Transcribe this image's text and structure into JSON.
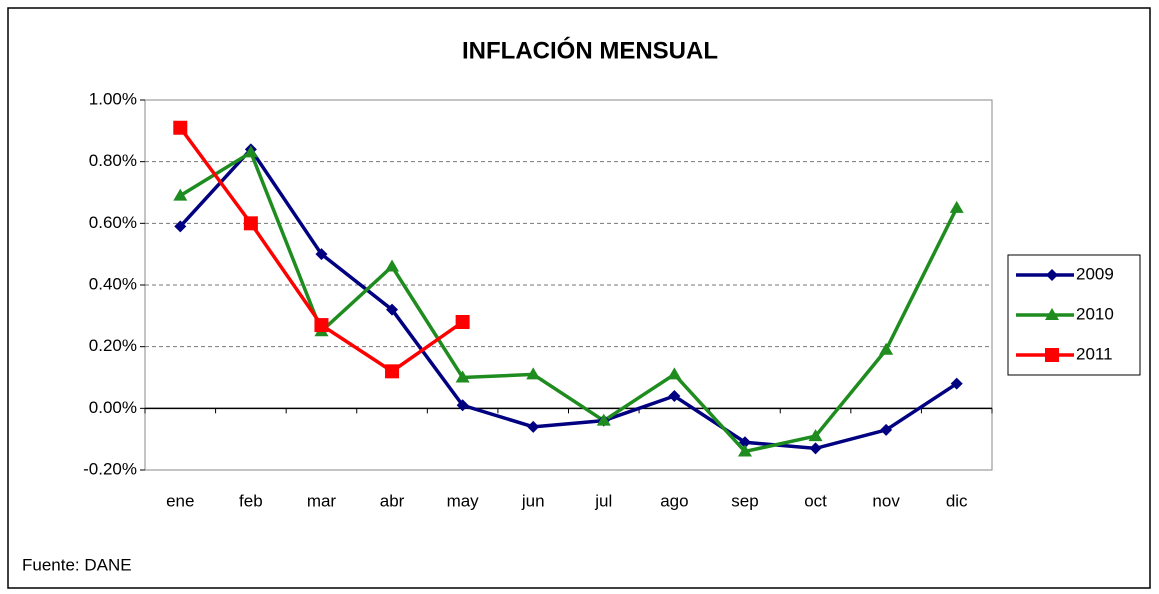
{
  "chart_data": {
    "type": "line",
    "title": "INFLACIÓN MENSUAL",
    "categories": [
      "ene",
      "feb",
      "mar",
      "abr",
      "may",
      "jun",
      "jul",
      "ago",
      "sep",
      "oct",
      "nov",
      "dic"
    ],
    "series": [
      {
        "name": "2009",
        "color": "#000080",
        "marker": "diamond",
        "values": [
          0.59,
          0.84,
          0.5,
          0.32,
          0.01,
          -0.06,
          -0.04,
          0.04,
          -0.11,
          -0.13,
          -0.07,
          0.08
        ]
      },
      {
        "name": "2010",
        "color": "#1e8c1e",
        "marker": "triangle",
        "values": [
          0.69,
          0.83,
          0.25,
          0.46,
          0.1,
          0.11,
          -0.04,
          0.11,
          -0.14,
          -0.09,
          0.19,
          0.65
        ]
      },
      {
        "name": "2011",
        "color": "#ff0000",
        "marker": "square",
        "values": [
          0.91,
          0.6,
          0.27,
          0.12,
          0.28,
          null,
          null,
          null,
          null,
          null,
          null,
          null
        ]
      }
    ],
    "ylim": [
      -0.2,
      1.0
    ],
    "yticks": [
      {
        "value": -0.2,
        "label": "-0.20%"
      },
      {
        "value": 0,
        "label": "0.00%"
      },
      {
        "value": 0.2,
        "label": "0.20%"
      },
      {
        "value": 0.4,
        "label": "0.40%"
      },
      {
        "value": 0.6,
        "label": "0.60%"
      },
      {
        "value": 0.8,
        "label": "0.80%"
      },
      {
        "value": 1.0,
        "label": "1.00%"
      }
    ],
    "grid": true,
    "legend": "right",
    "source": "Fuente: DANE"
  }
}
